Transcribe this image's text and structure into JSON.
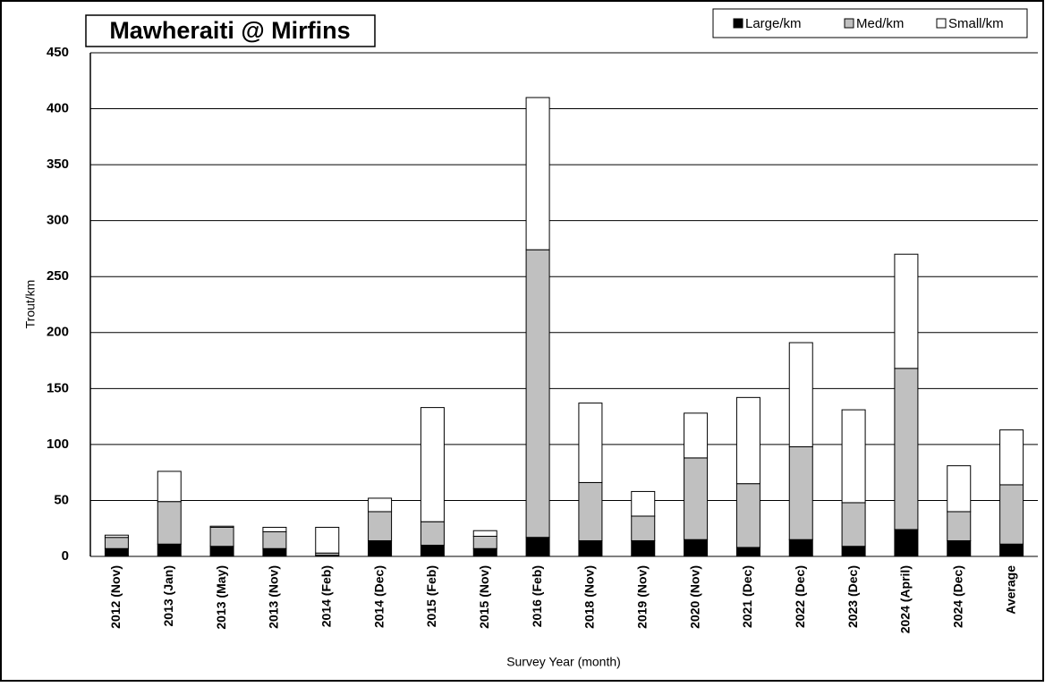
{
  "chart_data": {
    "type": "stacked_bar",
    "title": "Mawheraiti @ Mirfins",
    "y_label": "Trout/km",
    "x_label": "Survey Year (month)",
    "categories": [
      "2012 (Nov)",
      "2013 (Jan)",
      "2013 (May)",
      "2013 (Nov)",
      "2014 (Feb)",
      "2014 (Dec)",
      "2015 (Feb)",
      "2015 (Nov)",
      "2016 (Feb)",
      "2018 (Nov)",
      "2019 (Nov)",
      "2020 (Nov)",
      "2021 (Dec)",
      "2022 (Dec)",
      "2023 (Dec)",
      "2024 (April)",
      "2024 (Dec)",
      "Average"
    ],
    "series": [
      {
        "name": "Large/km",
        "color": "#000000",
        "values": [
          7,
          11,
          9,
          7,
          1,
          14,
          10,
          7,
          17,
          14,
          14,
          15,
          8,
          15,
          9,
          24,
          14,
          11
        ]
      },
      {
        "name": "Med/km",
        "color": "#c0c0c0",
        "values": [
          10,
          38,
          17,
          15,
          2,
          26,
          21,
          11,
          257,
          52,
          22,
          73,
          57,
          83,
          39,
          144,
          26,
          53
        ]
      },
      {
        "name": "Small/km",
        "color": "#ffffff",
        "values": [
          2,
          27,
          1,
          4,
          23,
          12,
          102,
          5,
          136,
          71,
          22,
          40,
          77,
          93,
          83,
          102,
          41,
          49
        ]
      }
    ],
    "ylim": [
      0,
      450
    ],
    "yticks": [
      0,
      50,
      100,
      150,
      200,
      250,
      300,
      350,
      400,
      450
    ],
    "grid": true,
    "legend": "top-right"
  }
}
